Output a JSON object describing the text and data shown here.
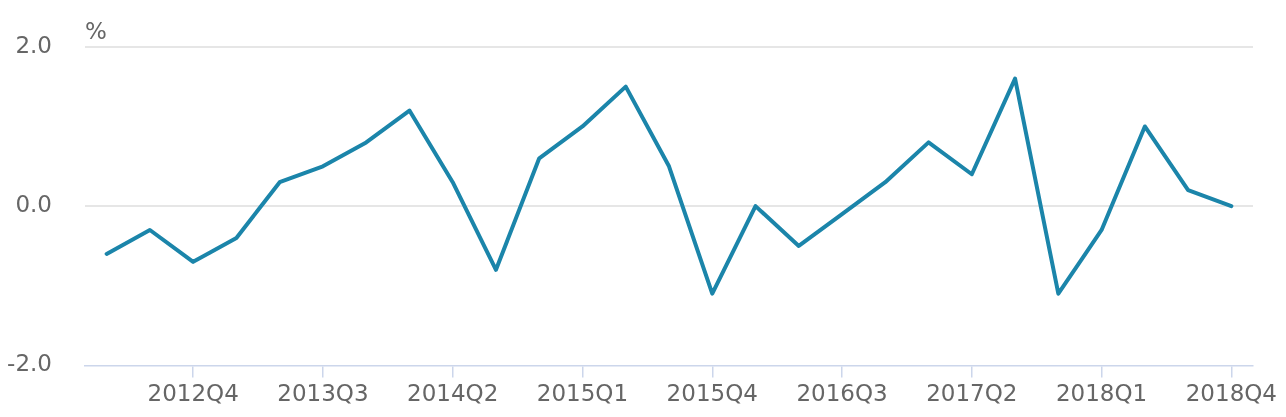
{
  "chart_data": {
    "type": "line",
    "ylabel": "%",
    "categories": [
      null,
      null,
      "2012Q4",
      null,
      null,
      "2013Q3",
      null,
      null,
      "2014Q2",
      null,
      null,
      "2015Q1",
      null,
      null,
      "2015Q4",
      null,
      null,
      "2016Q3",
      null,
      null,
      "2017Q2",
      null,
      null,
      "2018Q1",
      null,
      null,
      "2018Q4"
    ],
    "series": [
      {
        "color": "#1b85aa",
        "values": [
          -0.6,
          -0.3,
          -0.7,
          -0.4,
          0.3,
          0.5,
          0.8,
          1.2,
          0.3,
          -0.8,
          0.6,
          1.0,
          1.5,
          0.5,
          -1.1,
          0.0,
          -0.5,
          -0.1,
          0.3,
          0.8,
          0.4,
          1.6,
          -1.1,
          -0.3,
          1.0,
          0.2,
          0.0
        ]
      }
    ],
    "ylim": [
      -2,
      2
    ],
    "yticks": [
      {
        "value": -2,
        "label": "-2.0"
      },
      {
        "value": 0,
        "label": "0.0"
      },
      {
        "value": 2,
        "label": "2.0"
      }
    ],
    "grid": "y",
    "line_style": "solid"
  }
}
